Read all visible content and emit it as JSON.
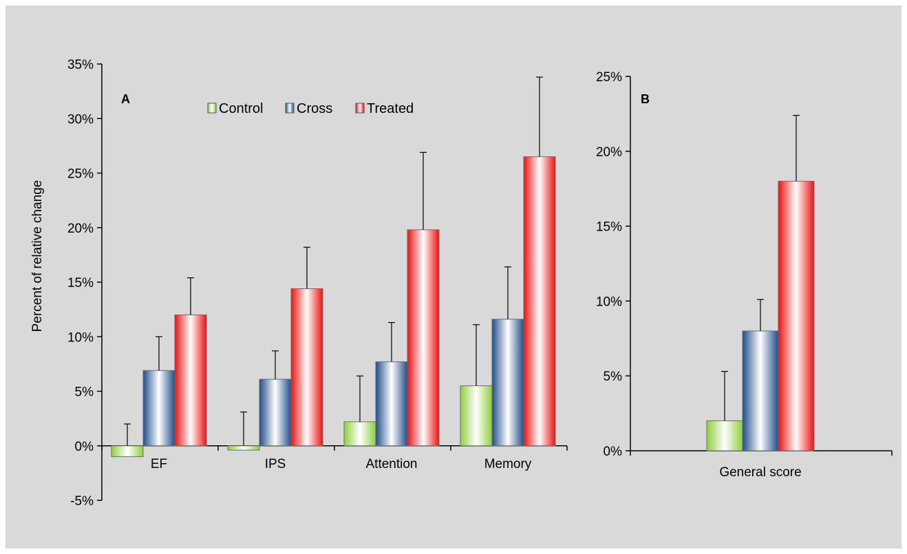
{
  "colors": {
    "background": "#d9d9d9",
    "control": "#8fd03f",
    "cross": "#1f4e8a",
    "treated": "#ee1010"
  },
  "chart_data": [
    {
      "panel_label": "A",
      "type": "bar",
      "ylabel": "Percent of relative change",
      "ylim": [
        -0.05,
        0.35
      ],
      "yticks": [
        -0.05,
        0,
        0.05,
        0.1,
        0.15,
        0.2,
        0.25,
        0.3,
        0.35
      ],
      "ytick_labels": [
        "-5%",
        "0%",
        "5%",
        "10%",
        "15%",
        "20%",
        "25%",
        "30%",
        "35%"
      ],
      "categories": [
        "EF",
        "IPS",
        "Attention",
        "Memory"
      ],
      "legend_position": "top",
      "series": [
        {
          "name": "Control",
          "color_key": "control",
          "values": [
            -0.01,
            -0.004,
            0.022,
            0.055
          ],
          "errors": [
            0.03,
            0.035,
            0.042,
            0.056
          ]
        },
        {
          "name": "Cross",
          "color_key": "cross",
          "values": [
            0.069,
            0.061,
            0.077,
            0.116
          ],
          "errors": [
            0.031,
            0.026,
            0.036,
            0.048
          ]
        },
        {
          "name": "Treated",
          "color_key": "treated",
          "values": [
            0.12,
            0.144,
            0.198,
            0.265
          ],
          "errors": [
            0.034,
            0.038,
            0.071,
            0.073
          ]
        }
      ]
    },
    {
      "panel_label": "B",
      "type": "bar",
      "ylim": [
        0,
        0.25
      ],
      "yticks": [
        0,
        0.05,
        0.1,
        0.15,
        0.2,
        0.25
      ],
      "ytick_labels": [
        "0%",
        "5%",
        "10%",
        "15%",
        "20%",
        "25%"
      ],
      "categories": [
        "General score"
      ],
      "series": [
        {
          "name": "Control",
          "color_key": "control",
          "values": [
            0.02
          ],
          "errors": [
            0.033
          ]
        },
        {
          "name": "Cross",
          "color_key": "cross",
          "values": [
            0.08
          ],
          "errors": [
            0.021
          ]
        },
        {
          "name": "Treated",
          "color_key": "treated",
          "values": [
            0.18
          ],
          "errors": [
            0.044
          ]
        }
      ]
    }
  ]
}
